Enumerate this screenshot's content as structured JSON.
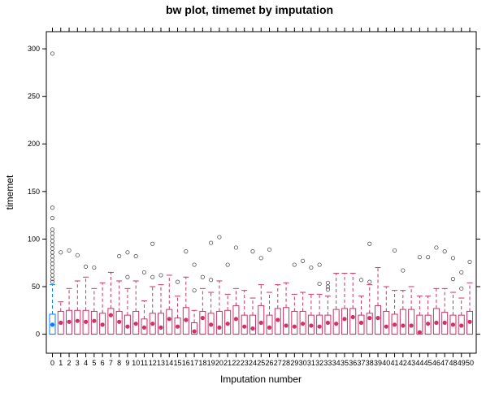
{
  "chart_data": {
    "type": "box",
    "title": "bw plot, timemet by imputation",
    "xlabel": "Imputation number",
    "ylabel": "timemet",
    "ylim": [
      -20,
      318
    ],
    "y_ticks": [
      0,
      50,
      100,
      150,
      200,
      250,
      300
    ],
    "categories": [
      "0",
      "1",
      "2",
      "3",
      "4",
      "5",
      "6",
      "7",
      "8",
      "9",
      "10",
      "11",
      "12",
      "13",
      "14",
      "15",
      "16",
      "17",
      "18",
      "19",
      "20",
      "21",
      "22",
      "23",
      "24",
      "25",
      "26",
      "27",
      "28",
      "29",
      "30",
      "31",
      "32",
      "33",
      "34",
      "35",
      "36",
      "37",
      "38",
      "39",
      "40",
      "41",
      "42",
      "43",
      "44",
      "45",
      "46",
      "47",
      "48",
      "49",
      "50"
    ],
    "series": [
      {
        "colors": {
          "observed": "#0080ff",
          "imputed": "#cc3366"
        },
        "boxes": [
          {
            "x": "0",
            "min": 0,
            "q1": 0,
            "median": 10,
            "q3": 21,
            "max": 52,
            "outliers": [
              55,
              58,
              62,
              66,
              70,
              74,
              78,
              82,
              86,
              90,
              94,
              98,
              102,
              106,
              110,
              122,
              133,
              295
            ]
          },
          {
            "x": "1",
            "min": 0,
            "q1": 0,
            "median": 12,
            "q3": 24,
            "max": 34,
            "outliers": [
              86
            ]
          },
          {
            "x": "2",
            "min": 0,
            "q1": 0,
            "median": 13,
            "q3": 25,
            "max": 48,
            "outliers": [
              88
            ]
          },
          {
            "x": "3",
            "min": 0,
            "q1": 0,
            "median": 14,
            "q3": 25,
            "max": 56,
            "outliers": [
              83
            ]
          },
          {
            "x": "4",
            "min": 0,
            "q1": 0,
            "median": 13,
            "q3": 25,
            "max": 60,
            "outliers": [
              71
            ]
          },
          {
            "x": "5",
            "min": 0,
            "q1": 0,
            "median": 14,
            "q3": 24,
            "max": 48,
            "outliers": [
              70
            ]
          },
          {
            "x": "6",
            "min": 0,
            "q1": 0,
            "median": 10,
            "q3": 22,
            "max": 54,
            "outliers": []
          },
          {
            "x": "7",
            "min": 0,
            "q1": 0,
            "median": 20,
            "q3": 27,
            "max": 65,
            "outliers": []
          },
          {
            "x": "8",
            "min": 0,
            "q1": 0,
            "median": 13,
            "q3": 24,
            "max": 56,
            "outliers": [
              82
            ]
          },
          {
            "x": "9",
            "min": 0,
            "q1": 0,
            "median": 8,
            "q3": 20,
            "max": 48,
            "outliers": [
              60,
              86
            ]
          },
          {
            "x": "10",
            "min": 0,
            "q1": 0,
            "median": 11,
            "q3": 24,
            "max": 56,
            "outliers": [
              82
            ]
          },
          {
            "x": "11",
            "min": 0,
            "q1": 0,
            "median": 7,
            "q3": 16,
            "max": 35,
            "outliers": [
              65
            ]
          },
          {
            "x": "12",
            "min": 0,
            "q1": 0,
            "median": 11,
            "q3": 22,
            "max": 50,
            "outliers": [
              60,
              95
            ]
          },
          {
            "x": "13",
            "min": 0,
            "q1": 0,
            "median": 7,
            "q3": 22,
            "max": 52,
            "outliers": [
              62
            ]
          },
          {
            "x": "14",
            "min": 0,
            "q1": 0,
            "median": 16,
            "q3": 26,
            "max": 62,
            "outliers": []
          },
          {
            "x": "15",
            "min": 0,
            "q1": 0,
            "median": 8,
            "q3": 17,
            "max": 40,
            "outliers": [
              55
            ]
          },
          {
            "x": "16",
            "min": 0,
            "q1": 0,
            "median": 15,
            "q3": 28,
            "max": 60,
            "outliers": [
              87
            ]
          },
          {
            "x": "17",
            "min": 0,
            "q1": 0,
            "median": 3,
            "q3": 12,
            "max": 25,
            "outliers": [
              46,
              73
            ]
          },
          {
            "x": "18",
            "min": 0,
            "q1": 0,
            "median": 17,
            "q3": 24,
            "max": 48,
            "outliers": [
              60
            ]
          },
          {
            "x": "19",
            "min": 0,
            "q1": 0,
            "median": 10,
            "q3": 22,
            "max": 44,
            "outliers": [
              57,
              96
            ]
          },
          {
            "x": "20",
            "min": 0,
            "q1": 0,
            "median": 7,
            "q3": 24,
            "max": 56,
            "outliers": [
              102
            ]
          },
          {
            "x": "21",
            "min": 0,
            "q1": 0,
            "median": 11,
            "q3": 25,
            "max": 42,
            "outliers": [
              73
            ]
          },
          {
            "x": "22",
            "min": 0,
            "q1": 0,
            "median": 16,
            "q3": 30,
            "max": 48,
            "outliers": [
              91
            ]
          },
          {
            "x": "23",
            "min": 0,
            "q1": 0,
            "median": 8,
            "q3": 20,
            "max": 46,
            "outliers": []
          },
          {
            "x": "24",
            "min": 0,
            "q1": 0,
            "median": 6,
            "q3": 20,
            "max": 38,
            "outliers": [
              87
            ]
          },
          {
            "x": "25",
            "min": 0,
            "q1": 0,
            "median": 12,
            "q3": 30,
            "max": 52,
            "outliers": [
              80
            ]
          },
          {
            "x": "26",
            "min": 0,
            "q1": 0,
            "median": 7,
            "q3": 20,
            "max": 44,
            "outliers": [
              89
            ]
          },
          {
            "x": "27",
            "min": 0,
            "q1": 0,
            "median": 15,
            "q3": 27,
            "max": 52,
            "outliers": []
          },
          {
            "x": "28",
            "min": 0,
            "q1": 0,
            "median": 9,
            "q3": 28,
            "max": 54,
            "outliers": []
          },
          {
            "x": "29",
            "min": 0,
            "q1": 0,
            "median": 8,
            "q3": 24,
            "max": 42,
            "outliers": [
              73
            ]
          },
          {
            "x": "30",
            "min": 0,
            "q1": 0,
            "median": 11,
            "q3": 24,
            "max": 44,
            "outliers": [
              77
            ]
          },
          {
            "x": "31",
            "min": 0,
            "q1": 0,
            "median": 9,
            "q3": 20,
            "max": 42,
            "outliers": [
              70
            ]
          },
          {
            "x": "32",
            "min": 0,
            "q1": 0,
            "median": 8,
            "q3": 20,
            "max": 42,
            "outliers": [
              53,
              73
            ]
          },
          {
            "x": "33",
            "min": 0,
            "q1": 0,
            "median": 12,
            "q3": 20,
            "max": 40,
            "outliers": [
              47,
              50,
              54
            ]
          },
          {
            "x": "34",
            "min": 0,
            "q1": 0,
            "median": 11,
            "q3": 26,
            "max": 64,
            "outliers": []
          },
          {
            "x": "35",
            "min": 0,
            "q1": 0,
            "median": 16,
            "q3": 27,
            "max": 64,
            "outliers": []
          },
          {
            "x": "36",
            "min": 0,
            "q1": 0,
            "median": 18,
            "q3": 27,
            "max": 64,
            "outliers": []
          },
          {
            "x": "37",
            "min": 0,
            "q1": 0,
            "median": 12,
            "q3": 20,
            "max": 40,
            "outliers": [
              57
            ]
          },
          {
            "x": "38",
            "min": 0,
            "q1": 0,
            "median": 17,
            "q3": 22,
            "max": 52,
            "outliers": [
              55,
              95
            ]
          },
          {
            "x": "39",
            "min": 0,
            "q1": 0,
            "median": 17,
            "q3": 30,
            "max": 70,
            "outliers": []
          },
          {
            "x": "40",
            "min": 0,
            "q1": 0,
            "median": 8,
            "q3": 24,
            "max": 50,
            "outliers": []
          },
          {
            "x": "41",
            "min": 0,
            "q1": 0,
            "median": 10,
            "q3": 21,
            "max": 46,
            "outliers": [
              88
            ]
          },
          {
            "x": "42",
            "min": 0,
            "q1": 0,
            "median": 9,
            "q3": 26,
            "max": 46,
            "outliers": [
              67
            ]
          },
          {
            "x": "43",
            "min": 0,
            "q1": 0,
            "median": 9,
            "q3": 26,
            "max": 50,
            "outliers": []
          },
          {
            "x": "44",
            "min": 0,
            "q1": 0,
            "median": 2,
            "q3": 20,
            "max": 40,
            "outliers": [
              81
            ]
          },
          {
            "x": "45",
            "min": 0,
            "q1": 0,
            "median": 11,
            "q3": 20,
            "max": 40,
            "outliers": [
              81
            ]
          },
          {
            "x": "46",
            "min": 0,
            "q1": 0,
            "median": 12,
            "q3": 27,
            "max": 48,
            "outliers": [
              91
            ]
          },
          {
            "x": "47",
            "min": 0,
            "q1": 0,
            "median": 12,
            "q3": 23,
            "max": 48,
            "outliers": [
              87
            ]
          },
          {
            "x": "48",
            "min": 0,
            "q1": 0,
            "median": 10,
            "q3": 20,
            "max": 44,
            "outliers": [
              58,
              80
            ]
          },
          {
            "x": "49",
            "min": 0,
            "q1": 0,
            "median": 9,
            "q3": 20,
            "max": 38,
            "outliers": [
              48,
              65
            ]
          },
          {
            "x": "50",
            "min": 0,
            "q1": 0,
            "median": 13,
            "q3": 24,
            "max": 54,
            "outliers": [
              76
            ]
          }
        ]
      }
    ],
    "grid": false,
    "legend": "none"
  }
}
